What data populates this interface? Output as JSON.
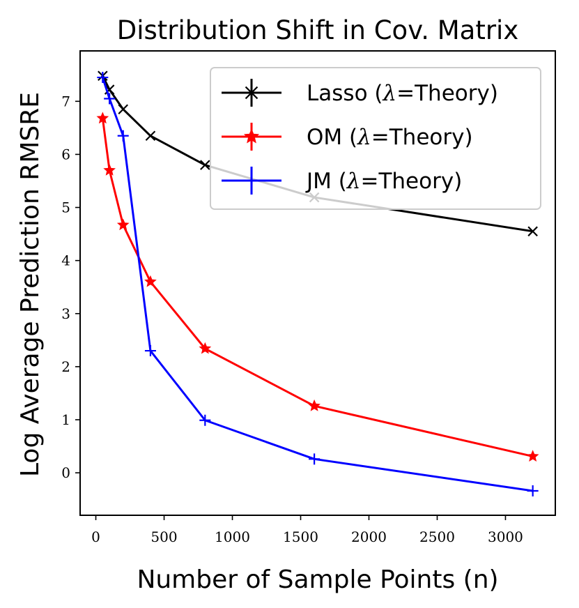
{
  "chart_data": {
    "type": "line",
    "title": "Distribution Shift in Cov. Matrix",
    "xlabel": "Number of Sample Points (n)",
    "ylabel": "Log Average Prediction RMSRE",
    "xlim": [
      -115,
      3365
    ],
    "ylim": [
      -0.8,
      7.95
    ],
    "xticks": [
      0,
      500,
      1000,
      1500,
      2000,
      2500,
      3000
    ],
    "yticks": [
      0,
      1,
      2,
      3,
      4,
      5,
      6,
      7
    ],
    "x": [
      50,
      100,
      200,
      400,
      800,
      1600,
      3200
    ],
    "series": [
      {
        "name": "Lasso (λ=Theory)",
        "label_prefix": "Lasso (",
        "label_symbol": "λ",
        "label_suffix": "=Theory)",
        "color": "#000000",
        "marker": "x",
        "values": [
          7.48,
          7.22,
          6.85,
          6.35,
          5.8,
          5.19,
          4.55
        ]
      },
      {
        "name": "OM (λ=Theory)",
        "label_prefix": "OM (",
        "label_symbol": "λ",
        "label_suffix": "=Theory)",
        "color": "#ff0000",
        "marker": "*",
        "values": [
          6.68,
          5.7,
          4.67,
          3.6,
          2.34,
          1.26,
          0.31
        ]
      },
      {
        "name": "JM (λ=Theory)",
        "label_prefix": "JM (",
        "label_symbol": "λ",
        "label_suffix": "=Theory)",
        "color": "#0000ff",
        "marker": "+",
        "values": [
          7.45,
          7.05,
          6.35,
          2.3,
          0.99,
          0.26,
          -0.34
        ]
      }
    ],
    "legend_position": "top-right",
    "grid": false
  }
}
